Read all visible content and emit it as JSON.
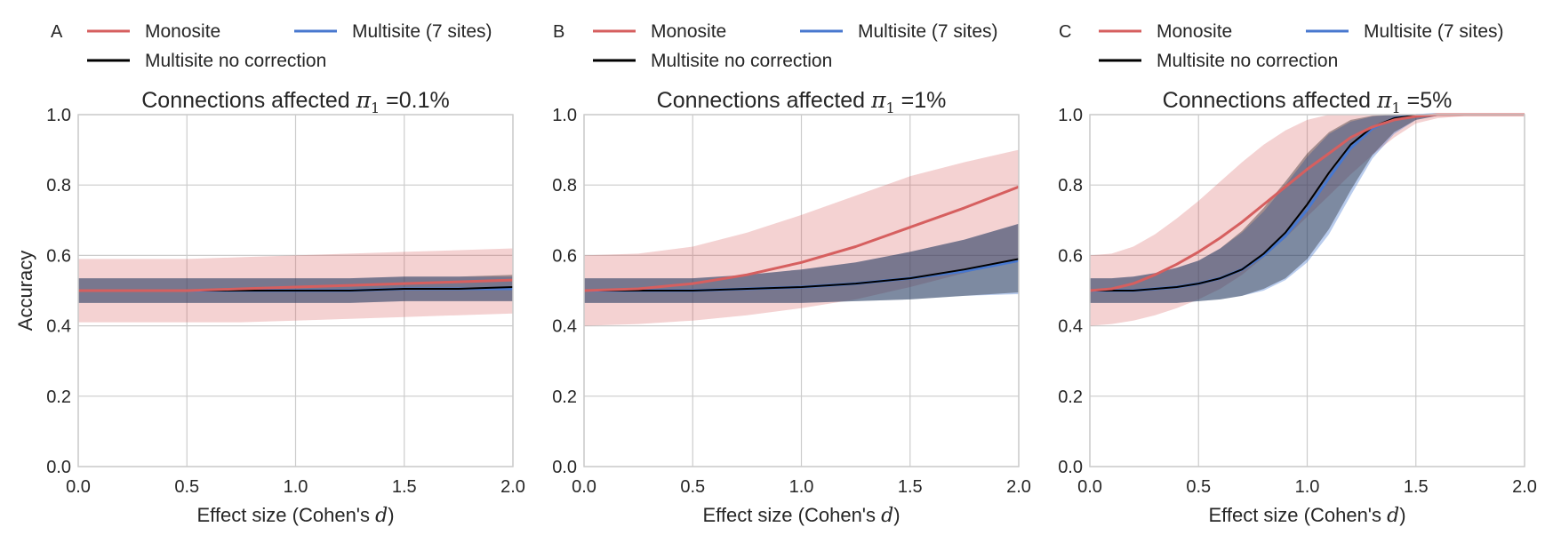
{
  "figure": {
    "ylabel": "Accuracy",
    "xlabel_prefix": "Effect size (Cohen's ",
    "xlabel_var": "d",
    "xlabel_suffix": ")",
    "title_prefix": "Connections affected ",
    "title_symbol": "π",
    "title_subscript": "1",
    "title_eq": " =",
    "xticks": [
      "0.0",
      "0.5",
      "1.0",
      "1.5",
      "2.0"
    ],
    "yticks": [
      "0.0",
      "0.2",
      "0.4",
      "0.6",
      "0.8",
      "1.0"
    ]
  },
  "legend": [
    {
      "label": "Monosite",
      "color": "#d65f5f"
    },
    {
      "label": "Multisite (7 sites)",
      "color": "#4878cf"
    },
    {
      "label": "Multisite no correction",
      "color": "#000000"
    }
  ],
  "colors": {
    "monosite": "#d65f5f",
    "multisite": "#4878cf",
    "no_correction": "#000000",
    "grid": "#cccccc",
    "axes": "#cccccc"
  },
  "chart_data": [
    {
      "type": "line",
      "panel_label": "A",
      "title_value": "0.1%",
      "xlim": [
        0,
        2
      ],
      "ylim": [
        0,
        1
      ],
      "grid": true,
      "legend_placement": "top",
      "x": [
        0,
        0.25,
        0.5,
        0.75,
        1.0,
        1.25,
        1.5,
        1.75,
        2.0
      ],
      "series": [
        {
          "name": "Monosite",
          "values": [
            0.5,
            0.5,
            0.5,
            0.505,
            0.51,
            0.515,
            0.52,
            0.525,
            0.53
          ],
          "lower": [
            0.41,
            0.41,
            0.41,
            0.41,
            0.415,
            0.42,
            0.425,
            0.43,
            0.435
          ],
          "upper": [
            0.59,
            0.59,
            0.59,
            0.595,
            0.6,
            0.605,
            0.61,
            0.615,
            0.62
          ]
        },
        {
          "name": "Multisite (7 sites)",
          "values": [
            0.5,
            0.5,
            0.5,
            0.5,
            0.5,
            0.5,
            0.505,
            0.505,
            0.505
          ],
          "lower": [
            0.465,
            0.465,
            0.465,
            0.465,
            0.465,
            0.465,
            0.47,
            0.47,
            0.47
          ],
          "upper": [
            0.535,
            0.535,
            0.535,
            0.535,
            0.535,
            0.535,
            0.54,
            0.54,
            0.54
          ]
        },
        {
          "name": "Multisite no correction",
          "values": [
            0.5,
            0.5,
            0.5,
            0.5,
            0.5,
            0.5,
            0.505,
            0.505,
            0.51
          ],
          "lower": [
            0.465,
            0.465,
            0.465,
            0.465,
            0.465,
            0.465,
            0.47,
            0.47,
            0.47
          ],
          "upper": [
            0.535,
            0.535,
            0.535,
            0.535,
            0.535,
            0.535,
            0.54,
            0.54,
            0.545
          ]
        }
      ]
    },
    {
      "type": "line",
      "panel_label": "B",
      "title_value": "1%",
      "xlim": [
        0,
        2
      ],
      "ylim": [
        0,
        1
      ],
      "grid": true,
      "legend_placement": "top",
      "x": [
        0,
        0.25,
        0.5,
        0.75,
        1.0,
        1.25,
        1.5,
        1.75,
        2.0
      ],
      "series": [
        {
          "name": "Monosite",
          "values": [
            0.5,
            0.505,
            0.52,
            0.545,
            0.58,
            0.625,
            0.68,
            0.735,
            0.795
          ],
          "lower": [
            0.4,
            0.405,
            0.415,
            0.43,
            0.45,
            0.475,
            0.51,
            0.55,
            0.59
          ],
          "upper": [
            0.6,
            0.605,
            0.625,
            0.665,
            0.715,
            0.77,
            0.825,
            0.865,
            0.9
          ]
        },
        {
          "name": "Multisite (7 sites)",
          "values": [
            0.5,
            0.5,
            0.5,
            0.505,
            0.51,
            0.52,
            0.535,
            0.555,
            0.585
          ],
          "lower": [
            0.465,
            0.465,
            0.465,
            0.465,
            0.465,
            0.47,
            0.475,
            0.485,
            0.49
          ],
          "upper": [
            0.535,
            0.535,
            0.535,
            0.545,
            0.56,
            0.58,
            0.61,
            0.645,
            0.69
          ]
        },
        {
          "name": "Multisite no correction",
          "values": [
            0.5,
            0.5,
            0.5,
            0.505,
            0.51,
            0.52,
            0.535,
            0.56,
            0.59
          ],
          "lower": [
            0.465,
            0.465,
            0.465,
            0.465,
            0.465,
            0.47,
            0.475,
            0.485,
            0.495
          ],
          "upper": [
            0.535,
            0.535,
            0.535,
            0.545,
            0.56,
            0.58,
            0.61,
            0.645,
            0.69
          ]
        }
      ]
    },
    {
      "type": "line",
      "panel_label": "C",
      "title_value": "5%",
      "xlim": [
        0,
        2
      ],
      "ylim": [
        0,
        1
      ],
      "grid": true,
      "legend_placement": "top",
      "x": [
        0,
        0.1,
        0.2,
        0.3,
        0.4,
        0.5,
        0.6,
        0.7,
        0.8,
        0.9,
        1.0,
        1.1,
        1.2,
        1.3,
        1.4,
        1.5,
        1.6,
        1.8,
        2.0
      ],
      "series": [
        {
          "name": "Monosite",
          "values": [
            0.5,
            0.505,
            0.52,
            0.545,
            0.575,
            0.61,
            0.65,
            0.695,
            0.745,
            0.795,
            0.845,
            0.89,
            0.935,
            0.965,
            0.985,
            0.995,
            1.0,
            1.0,
            1.0
          ],
          "lower": [
            0.4,
            0.405,
            0.415,
            0.43,
            0.45,
            0.475,
            0.505,
            0.545,
            0.595,
            0.65,
            0.71,
            0.77,
            0.83,
            0.885,
            0.935,
            0.975,
            0.99,
            1.0,
            1.0
          ],
          "upper": [
            0.6,
            0.605,
            0.625,
            0.66,
            0.705,
            0.755,
            0.81,
            0.865,
            0.915,
            0.955,
            0.985,
            1.0,
            1.0,
            1.0,
            1.0,
            1.0,
            1.0,
            1.0,
            1.0
          ]
        },
        {
          "name": "Multisite (7 sites)",
          "values": [
            0.5,
            0.5,
            0.5,
            0.505,
            0.51,
            0.52,
            0.535,
            0.56,
            0.6,
            0.655,
            0.73,
            0.82,
            0.905,
            0.96,
            0.99,
            0.998,
            1.0,
            1.0,
            1.0
          ],
          "lower": [
            0.465,
            0.465,
            0.465,
            0.465,
            0.465,
            0.47,
            0.475,
            0.485,
            0.5,
            0.53,
            0.58,
            0.66,
            0.77,
            0.875,
            0.945,
            0.985,
            0.997,
            1.0,
            1.0
          ],
          "upper": [
            0.535,
            0.535,
            0.54,
            0.55,
            0.565,
            0.585,
            0.62,
            0.665,
            0.725,
            0.8,
            0.88,
            0.945,
            0.98,
            0.995,
            1.0,
            1.0,
            1.0,
            1.0,
            1.0
          ]
        },
        {
          "name": "Multisite no correction",
          "values": [
            0.5,
            0.5,
            0.5,
            0.505,
            0.51,
            0.52,
            0.535,
            0.56,
            0.605,
            0.665,
            0.745,
            0.835,
            0.915,
            0.965,
            0.99,
            0.998,
            1.0,
            1.0,
            1.0
          ],
          "lower": [
            0.465,
            0.465,
            0.465,
            0.465,
            0.465,
            0.47,
            0.475,
            0.485,
            0.505,
            0.535,
            0.59,
            0.675,
            0.785,
            0.885,
            0.95,
            0.985,
            0.997,
            1.0,
            1.0
          ],
          "upper": [
            0.535,
            0.535,
            0.54,
            0.55,
            0.565,
            0.585,
            0.62,
            0.67,
            0.735,
            0.81,
            0.89,
            0.95,
            0.985,
            0.997,
            1.0,
            1.0,
            1.0,
            1.0,
            1.0
          ]
        }
      ]
    }
  ]
}
